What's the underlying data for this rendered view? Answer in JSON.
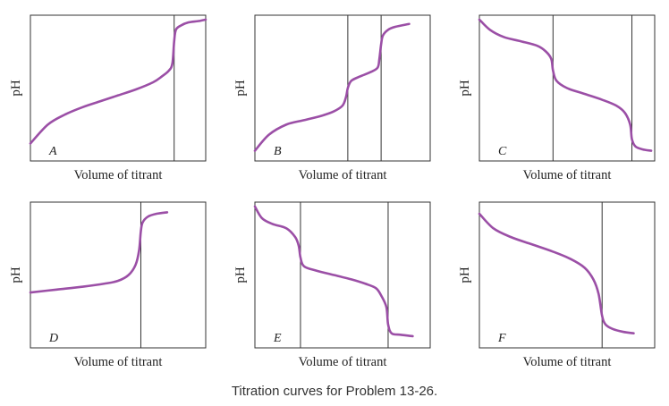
{
  "caption": "Titration curves for Problem 13-26.",
  "colors": {
    "curve": "#9b4fa6",
    "frame": "#333333"
  },
  "chart_data": [
    {
      "type": "line",
      "panel_letter": "A",
      "xlabel": "Volume of titrant",
      "ylabel": "pH",
      "xlim": [
        0,
        1
      ],
      "ylim": [
        0,
        1
      ],
      "grid": false,
      "equivalence_points": [
        0.82
      ],
      "x": [
        0.0,
        0.1,
        0.2,
        0.3,
        0.4,
        0.5,
        0.6,
        0.7,
        0.75,
        0.79,
        0.81,
        0.82,
        0.83,
        0.86,
        0.9,
        0.96,
        1.0
      ],
      "y": [
        0.12,
        0.25,
        0.32,
        0.37,
        0.41,
        0.45,
        0.49,
        0.54,
        0.58,
        0.62,
        0.67,
        0.82,
        0.9,
        0.93,
        0.95,
        0.96,
        0.97
      ]
    },
    {
      "type": "line",
      "panel_letter": "B",
      "xlabel": "Volume of titrant",
      "ylabel": "pH",
      "xlim": [
        0,
        1
      ],
      "ylim": [
        0,
        1
      ],
      "grid": false,
      "equivalence_points": [
        0.53,
        0.72
      ],
      "x": [
        0.0,
        0.08,
        0.18,
        0.28,
        0.38,
        0.45,
        0.5,
        0.52,
        0.53,
        0.55,
        0.6,
        0.66,
        0.7,
        0.71,
        0.72,
        0.73,
        0.76,
        0.8,
        0.88
      ],
      "y": [
        0.07,
        0.18,
        0.25,
        0.28,
        0.31,
        0.34,
        0.38,
        0.44,
        0.5,
        0.55,
        0.58,
        0.61,
        0.64,
        0.7,
        0.8,
        0.86,
        0.9,
        0.92,
        0.94
      ]
    },
    {
      "type": "line",
      "panel_letter": "C",
      "xlabel": "Volume of titrant",
      "ylabel": "pH",
      "xlim": [
        0,
        1
      ],
      "ylim": [
        0,
        1
      ],
      "grid": false,
      "equivalence_points": [
        0.42,
        0.87
      ],
      "x": [
        0.0,
        0.06,
        0.14,
        0.24,
        0.33,
        0.38,
        0.41,
        0.42,
        0.44,
        0.5,
        0.6,
        0.7,
        0.78,
        0.83,
        0.86,
        0.87,
        0.89,
        0.93,
        0.98
      ],
      "y": [
        0.97,
        0.9,
        0.85,
        0.82,
        0.79,
        0.75,
        0.7,
        0.62,
        0.55,
        0.5,
        0.46,
        0.42,
        0.38,
        0.33,
        0.25,
        0.15,
        0.1,
        0.08,
        0.07
      ]
    },
    {
      "type": "line",
      "panel_letter": "D",
      "xlabel": "Volume of titrant",
      "ylabel": "pH",
      "xlim": [
        0,
        1
      ],
      "ylim": [
        0,
        1
      ],
      "grid": false,
      "equivalence_points": [
        0.63
      ],
      "x": [
        0.0,
        0.15,
        0.3,
        0.42,
        0.5,
        0.56,
        0.6,
        0.62,
        0.63,
        0.64,
        0.67,
        0.72,
        0.78
      ],
      "y": [
        0.38,
        0.4,
        0.42,
        0.44,
        0.46,
        0.5,
        0.57,
        0.67,
        0.8,
        0.86,
        0.9,
        0.92,
        0.93
      ]
    },
    {
      "type": "line",
      "panel_letter": "E",
      "xlabel": "Volume of titrant",
      "ylabel": "pH",
      "xlim": [
        0,
        1
      ],
      "ylim": [
        0,
        1
      ],
      "grid": false,
      "equivalence_points": [
        0.26,
        0.76
      ],
      "x": [
        0.0,
        0.04,
        0.1,
        0.18,
        0.23,
        0.25,
        0.26,
        0.28,
        0.35,
        0.45,
        0.55,
        0.63,
        0.69,
        0.72,
        0.75,
        0.76,
        0.78,
        0.83,
        0.9
      ],
      "y": [
        0.97,
        0.89,
        0.85,
        0.82,
        0.76,
        0.7,
        0.62,
        0.56,
        0.53,
        0.5,
        0.47,
        0.44,
        0.41,
        0.36,
        0.28,
        0.16,
        0.1,
        0.09,
        0.08
      ]
    },
    {
      "type": "line",
      "panel_letter": "F",
      "xlabel": "Volume of titrant",
      "ylabel": "pH",
      "xlim": [
        0,
        1
      ],
      "ylim": [
        0,
        1
      ],
      "grid": false,
      "equivalence_points": [
        0.7
      ],
      "x": [
        0.0,
        0.08,
        0.18,
        0.3,
        0.42,
        0.52,
        0.6,
        0.65,
        0.68,
        0.7,
        0.72,
        0.76,
        0.82,
        0.88
      ],
      "y": [
        0.92,
        0.82,
        0.76,
        0.71,
        0.66,
        0.61,
        0.55,
        0.47,
        0.37,
        0.22,
        0.16,
        0.13,
        0.11,
        0.1
      ]
    }
  ]
}
